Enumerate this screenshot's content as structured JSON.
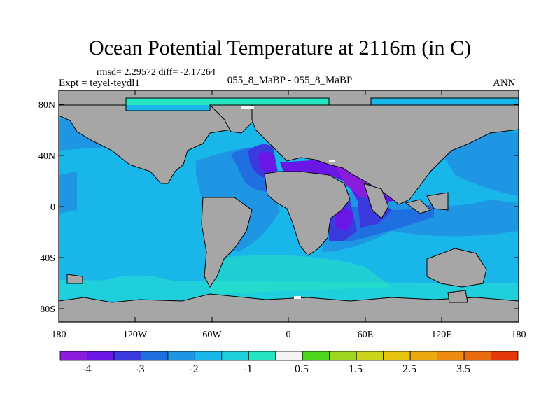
{
  "title": "Ocean Potential Temperature at 2116m (in C)",
  "stats": "rmsd= 2.29572 diff= -2.17264",
  "expt": "Expt = teyel-teydl1",
  "case": "055_8_MaBP - 055_8_MaBP",
  "season": "ANN",
  "lat_labels": [
    "80N",
    "40N",
    "0",
    "40S",
    "80S"
  ],
  "lon_labels": [
    "180",
    "120W",
    "60W",
    "0",
    "60E",
    "120E",
    "180"
  ],
  "colorbar": {
    "colors": [
      "#8a1ddb",
      "#6a16e6",
      "#3a3ade",
      "#1f6fe0",
      "#1e96e4",
      "#19b6ea",
      "#1fd0dc",
      "#25e4c0",
      "#f4f4f4",
      "#4ed51e",
      "#9ed61f",
      "#c9d41b",
      "#e6c40f",
      "#ecaa12",
      "#ec8c10",
      "#ea6a0e",
      "#e2380a"
    ],
    "labels": [
      "-4",
      "-3",
      "-2",
      "-1",
      "0.5",
      "1.5",
      "2.5",
      "3.5"
    ]
  },
  "legend_colors": {
    "land": "#a6a6a6",
    "ocean_bg": "#19b6ea"
  }
}
